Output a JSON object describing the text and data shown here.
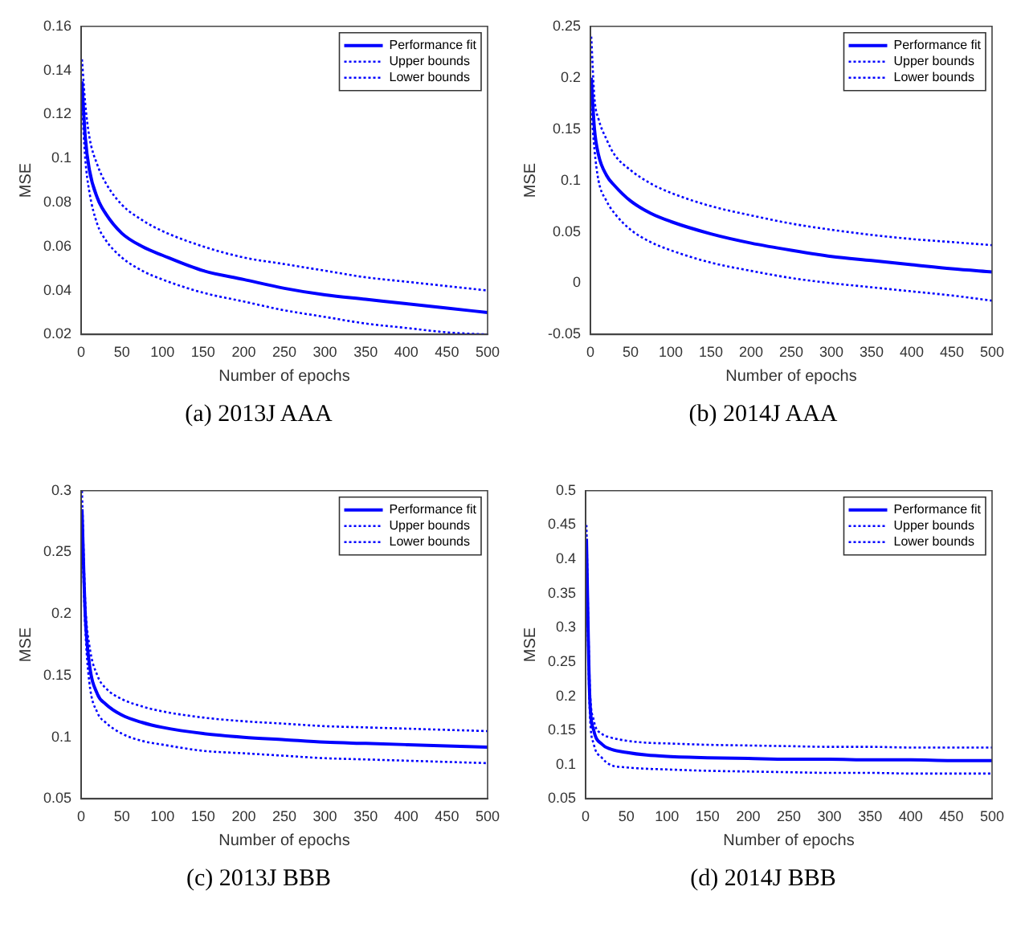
{
  "chart_data": [
    {
      "type": "line",
      "title": "(a) 2013J AAA",
      "xlabel": "Number of epochs",
      "ylabel": "MSE",
      "x": [
        1,
        5,
        10,
        20,
        30,
        50,
        75,
        100,
        150,
        200,
        250,
        300,
        350,
        400,
        450,
        500
      ],
      "xlim": [
        0,
        500
      ],
      "xticks": [
        0,
        50,
        100,
        150,
        200,
        250,
        300,
        350,
        400,
        450,
        500
      ],
      "ylim": [
        0.02,
        0.16
      ],
      "yticks": [
        0.02,
        0.04,
        0.06,
        0.08,
        0.1,
        0.12,
        0.14,
        0.16
      ],
      "legend": "top right",
      "series": [
        {
          "name": "Performance fit",
          "color": "#0000ff",
          "line_style": "solid",
          "values": [
            0.135,
            0.11,
            0.095,
            0.082,
            0.075,
            0.066,
            0.06,
            0.056,
            0.049,
            0.045,
            0.041,
            0.038,
            0.036,
            0.034,
            0.032,
            0.03
          ]
        },
        {
          "name": "Upper bounds",
          "color": "#0000ff",
          "line_style": "dotted",
          "values": [
            0.145,
            0.125,
            0.11,
            0.097,
            0.089,
            0.079,
            0.072,
            0.067,
            0.06,
            0.055,
            0.052,
            0.049,
            0.046,
            0.044,
            0.042,
            0.04
          ]
        },
        {
          "name": "Lower bounds",
          "color": "#0000ff",
          "line_style": "dotted",
          "values": [
            0.125,
            0.1,
            0.085,
            0.07,
            0.063,
            0.055,
            0.049,
            0.045,
            0.039,
            0.035,
            0.031,
            0.028,
            0.025,
            0.023,
            0.021,
            0.02
          ]
        }
      ]
    },
    {
      "type": "line",
      "title": "(b) 2014J AAA",
      "xlabel": "Number of epochs",
      "ylabel": "MSE",
      "x": [
        1,
        5,
        10,
        20,
        30,
        50,
        75,
        100,
        150,
        200,
        250,
        300,
        350,
        400,
        450,
        500
      ],
      "xlim": [
        0,
        500
      ],
      "xticks": [
        0,
        50,
        100,
        150,
        200,
        250,
        300,
        350,
        400,
        450,
        500
      ],
      "ylim": [
        -0.05,
        0.25
      ],
      "yticks": [
        -0.05,
        0,
        0.05,
        0.1,
        0.15,
        0.2,
        0.25
      ],
      "legend": "top right",
      "series": [
        {
          "name": "Performance fit",
          "color": "#0000ff",
          "line_style": "solid",
          "values": [
            0.2,
            0.15,
            0.125,
            0.105,
            0.095,
            0.08,
            0.068,
            0.06,
            0.048,
            0.039,
            0.032,
            0.026,
            0.022,
            0.018,
            0.014,
            0.011
          ]
        },
        {
          "name": "Upper bounds",
          "color": "#0000ff",
          "line_style": "dotted",
          "values": [
            0.24,
            0.18,
            0.16,
            0.14,
            0.125,
            0.11,
            0.097,
            0.088,
            0.075,
            0.066,
            0.058,
            0.052,
            0.047,
            0.043,
            0.04,
            0.037
          ]
        },
        {
          "name": "Lower bounds",
          "color": "#0000ff",
          "line_style": "dotted",
          "values": [
            0.17,
            0.13,
            0.1,
            0.08,
            0.068,
            0.052,
            0.04,
            0.032,
            0.02,
            0.012,
            0.005,
            0.0,
            -0.004,
            -0.008,
            -0.012,
            -0.017
          ]
        }
      ]
    },
    {
      "type": "line",
      "title": "(c) 2013J BBB",
      "xlabel": "Number of epochs",
      "ylabel": "MSE",
      "x": [
        1,
        5,
        10,
        20,
        30,
        50,
        75,
        100,
        150,
        200,
        250,
        300,
        350,
        400,
        450,
        500
      ],
      "xlim": [
        0,
        500
      ],
      "xticks": [
        0,
        50,
        100,
        150,
        200,
        250,
        300,
        350,
        400,
        450,
        500
      ],
      "ylim": [
        0.05,
        0.3
      ],
      "yticks": [
        0.05,
        0.1,
        0.15,
        0.2,
        0.25,
        0.3
      ],
      "legend": "top right",
      "series": [
        {
          "name": "Performance fit",
          "color": "#0000ff",
          "line_style": "solid",
          "values": [
            0.285,
            0.2,
            0.16,
            0.135,
            0.127,
            0.118,
            0.112,
            0.108,
            0.103,
            0.1,
            0.098,
            0.096,
            0.095,
            0.094,
            0.093,
            0.092
          ]
        },
        {
          "name": "Upper bounds",
          "color": "#0000ff",
          "line_style": "dotted",
          "values": [
            0.3,
            0.21,
            0.175,
            0.15,
            0.14,
            0.131,
            0.125,
            0.121,
            0.116,
            0.113,
            0.111,
            0.109,
            0.108,
            0.107,
            0.106,
            0.105
          ]
        },
        {
          "name": "Lower bounds",
          "color": "#0000ff",
          "line_style": "dotted",
          "values": [
            0.27,
            0.19,
            0.145,
            0.12,
            0.112,
            0.103,
            0.097,
            0.094,
            0.089,
            0.087,
            0.085,
            0.083,
            0.082,
            0.081,
            0.08,
            0.079
          ]
        }
      ]
    },
    {
      "type": "line",
      "title": "(d) 2014J BBB",
      "xlabel": "Number of epochs",
      "ylabel": "MSE",
      "x": [
        1,
        5,
        10,
        20,
        30,
        50,
        75,
        100,
        150,
        200,
        250,
        300,
        350,
        400,
        450,
        500
      ],
      "xlim": [
        0,
        500
      ],
      "xticks": [
        0,
        50,
        100,
        150,
        200,
        250,
        300,
        350,
        400,
        450,
        500
      ],
      "ylim": [
        0.05,
        0.5
      ],
      "yticks": [
        0.05,
        0.1,
        0.15,
        0.2,
        0.25,
        0.3,
        0.35,
        0.4,
        0.45,
        0.5
      ],
      "legend": "top right",
      "series": [
        {
          "name": "Performance fit",
          "color": "#0000ff",
          "line_style": "solid",
          "values": [
            0.43,
            0.2,
            0.15,
            0.13,
            0.123,
            0.118,
            0.114,
            0.112,
            0.11,
            0.109,
            0.108,
            0.108,
            0.107,
            0.107,
            0.106,
            0.106
          ]
        },
        {
          "name": "Upper bounds",
          "color": "#0000ff",
          "line_style": "dotted",
          "values": [
            0.45,
            0.22,
            0.165,
            0.145,
            0.14,
            0.135,
            0.132,
            0.131,
            0.129,
            0.128,
            0.127,
            0.126,
            0.126,
            0.125,
            0.125,
            0.125
          ]
        },
        {
          "name": "Lower bounds",
          "color": "#0000ff",
          "line_style": "dotted",
          "values": [
            0.41,
            0.18,
            0.13,
            0.11,
            0.1,
            0.096,
            0.094,
            0.093,
            0.091,
            0.09,
            0.089,
            0.088,
            0.088,
            0.087,
            0.087,
            0.087
          ]
        }
      ]
    }
  ]
}
